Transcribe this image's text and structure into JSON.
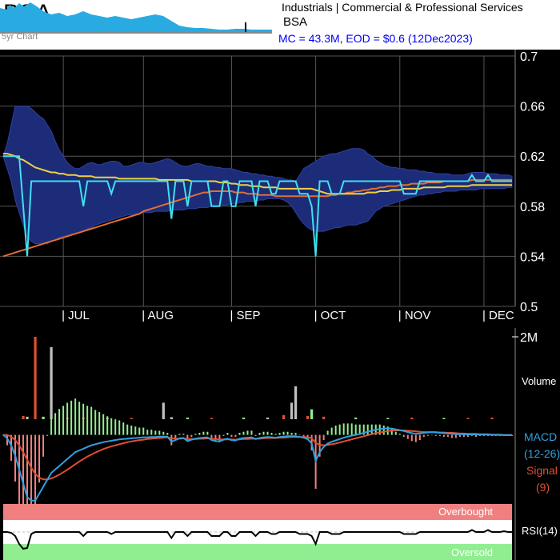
{
  "header": {
    "ticker": "BSA",
    "spark_label": "5yr Chart",
    "sector": "Industrials | Commercial & Professional Services",
    "ticker_small": "BSA",
    "mc_line": "MC = 43.3M, EOD = $0.6 (12Dec2023)"
  },
  "colors": {
    "price": "#40e0f0",
    "band": "#1c2c78",
    "ma_short": "#f0d040",
    "ma_long": "#e07030",
    "macd": "#30a0e0",
    "signal": "#e05030",
    "overbought": "#f08080",
    "oversold": "#90ee90",
    "volume_up": "#90ee90",
    "volume_down": "#e05030",
    "volume_neutral": "#c0c0c0"
  },
  "chart_data": [
    {
      "type": "line",
      "panel": "price",
      "ylim": [
        0.5,
        0.7
      ],
      "yticks": [
        0.5,
        0.54,
        0.58,
        0.62,
        0.66,
        0.7
      ],
      "ytick_labels": [
        "0.5",
        "0.54",
        "0.58",
        "0.62",
        "0.66",
        "0.7"
      ],
      "x_labels": [
        "| JUL",
        "| AUG",
        "| SEP",
        "| OCT",
        "| NOV",
        "| DEC"
      ],
      "x_label_days": [
        15,
        35,
        57,
        78,
        99,
        120
      ],
      "n_days": 128,
      "price": [
        0.62,
        0.62,
        0.62,
        0.62,
        0.62,
        0.58,
        0.54,
        0.6,
        0.6,
        0.6,
        0.6,
        0.6,
        0.6,
        0.6,
        0.6,
        0.6,
        0.6,
        0.6,
        0.6,
        0.6,
        0.58,
        0.6,
        0.6,
        0.6,
        0.6,
        0.6,
        0.6,
        0.59,
        0.6,
        0.6,
        0.6,
        0.6,
        0.6,
        0.6,
        0.6,
        0.6,
        0.6,
        0.6,
        0.6,
        0.6,
        0.6,
        0.6,
        0.57,
        0.6,
        0.6,
        0.6,
        0.58,
        0.6,
        0.6,
        0.6,
        0.6,
        0.6,
        0.58,
        0.58,
        0.58,
        0.6,
        0.6,
        0.58,
        0.58,
        0.6,
        0.6,
        0.6,
        0.6,
        0.58,
        0.6,
        0.6,
        0.6,
        0.59,
        0.59,
        0.6,
        0.6,
        0.6,
        0.6,
        0.6,
        0.59,
        0.59,
        0.59,
        0.58,
        0.54,
        0.6,
        0.6,
        0.6,
        0.59,
        0.59,
        0.59,
        0.6,
        0.6,
        0.6,
        0.6,
        0.6,
        0.6,
        0.6,
        0.6,
        0.6,
        0.6,
        0.6,
        0.6,
        0.6,
        0.6,
        0.6,
        0.59,
        0.59,
        0.59,
        0.59,
        0.6,
        0.6,
        0.6,
        0.6,
        0.6,
        0.6,
        0.6,
        0.6,
        0.6,
        0.6,
        0.6,
        0.6,
        0.6,
        0.605,
        0.6,
        0.6,
        0.6,
        0.605,
        0.6,
        0.6,
        0.6,
        0.6,
        0.6,
        0.6
      ],
      "band_upper": [
        0.62,
        0.63,
        0.645,
        0.66,
        0.66,
        0.66,
        0.66,
        0.658,
        0.655,
        0.652,
        0.65,
        0.645,
        0.64,
        0.632,
        0.625,
        0.62,
        0.615,
        0.612,
        0.61,
        0.61,
        0.612,
        0.614,
        0.615,
        0.614,
        0.613,
        0.614,
        0.615,
        0.616,
        0.616,
        0.615,
        0.612,
        0.612,
        0.613,
        0.614,
        0.615,
        0.615,
        0.614,
        0.614,
        0.615,
        0.616,
        0.617,
        0.618,
        0.617,
        0.615,
        0.613,
        0.612,
        0.612,
        0.613,
        0.614,
        0.614,
        0.613,
        0.612,
        0.612,
        0.611,
        0.611,
        0.61,
        0.61,
        0.61,
        0.609,
        0.608,
        0.607,
        0.607,
        0.606,
        0.606,
        0.605,
        0.605,
        0.604,
        0.604,
        0.603,
        0.603,
        0.602,
        0.601,
        0.601,
        0.6,
        0.605,
        0.61,
        0.612,
        0.614,
        0.616,
        0.618,
        0.62,
        0.621,
        0.622,
        0.622,
        0.623,
        0.624,
        0.625,
        0.626,
        0.626,
        0.626,
        0.625,
        0.622,
        0.62,
        0.617,
        0.615,
        0.613,
        0.612,
        0.611,
        0.611,
        0.61,
        0.61,
        0.609,
        0.609,
        0.609,
        0.608,
        0.608,
        0.607,
        0.607,
        0.606,
        0.606,
        0.606,
        0.606,
        0.605,
        0.605,
        0.605,
        0.605,
        0.606,
        0.607,
        0.607,
        0.607,
        0.607,
        0.606,
        0.606,
        0.606,
        0.605,
        0.605,
        0.605,
        0.604
      ],
      "band_lower": [
        0.62,
        0.61,
        0.6,
        0.585,
        0.575,
        0.565,
        0.555,
        0.552,
        0.55,
        0.55,
        0.55,
        0.55,
        0.552,
        0.553,
        0.555,
        0.556,
        0.557,
        0.558,
        0.558,
        0.559,
        0.56,
        0.562,
        0.563,
        0.565,
        0.566,
        0.567,
        0.568,
        0.569,
        0.57,
        0.571,
        0.572,
        0.573,
        0.573,
        0.574,
        0.574,
        0.575,
        0.575,
        0.575,
        0.576,
        0.576,
        0.576,
        0.576,
        0.577,
        0.577,
        0.577,
        0.577,
        0.578,
        0.578,
        0.578,
        0.579,
        0.579,
        0.579,
        0.58,
        0.58,
        0.58,
        0.581,
        0.581,
        0.582,
        0.582,
        0.583,
        0.583,
        0.584,
        0.584,
        0.584,
        0.585,
        0.585,
        0.586,
        0.586,
        0.586,
        0.586,
        0.585,
        0.583,
        0.58,
        0.575,
        0.57,
        0.566,
        0.563,
        0.561,
        0.56,
        0.56,
        0.56,
        0.561,
        0.562,
        0.563,
        0.563,
        0.564,
        0.565,
        0.565,
        0.565,
        0.566,
        0.567,
        0.568,
        0.572,
        0.576,
        0.578,
        0.58,
        0.581,
        0.582,
        0.583,
        0.584,
        0.585,
        0.586,
        0.587,
        0.588,
        0.589,
        0.589,
        0.59,
        0.59,
        0.591,
        0.591,
        0.592,
        0.592,
        0.592,
        0.592,
        0.593,
        0.593,
        0.593,
        0.593,
        0.593,
        0.594,
        0.594,
        0.594,
        0.594,
        0.594,
        0.594,
        0.594,
        0.595,
        0.595
      ],
      "ma_short": [
        0.622,
        0.622,
        0.621,
        0.62,
        0.618,
        0.617,
        0.615,
        0.613,
        0.611,
        0.61,
        0.609,
        0.608,
        0.607,
        0.607,
        0.606,
        0.606,
        0.605,
        0.605,
        0.605,
        0.604,
        0.604,
        0.604,
        0.604,
        0.603,
        0.603,
        0.603,
        0.603,
        0.603,
        0.603,
        0.602,
        0.602,
        0.602,
        0.602,
        0.602,
        0.602,
        0.602,
        0.602,
        0.602,
        0.602,
        0.601,
        0.601,
        0.601,
        0.601,
        0.601,
        0.601,
        0.601,
        0.601,
        0.6,
        0.6,
        0.6,
        0.6,
        0.6,
        0.6,
        0.6,
        0.599,
        0.599,
        0.599,
        0.598,
        0.598,
        0.597,
        0.597,
        0.597,
        0.596,
        0.596,
        0.596,
        0.595,
        0.595,
        0.595,
        0.595,
        0.594,
        0.594,
        0.594,
        0.594,
        0.594,
        0.594,
        0.594,
        0.594,
        0.594,
        0.593,
        0.592,
        0.591,
        0.59,
        0.59,
        0.59,
        0.59,
        0.59,
        0.59,
        0.59,
        0.59,
        0.59,
        0.59,
        0.591,
        0.591,
        0.591,
        0.592,
        0.592,
        0.592,
        0.593,
        0.593,
        0.593,
        0.594,
        0.594,
        0.594,
        0.594,
        0.594,
        0.595,
        0.595,
        0.595,
        0.595,
        0.595,
        0.595,
        0.596,
        0.596,
        0.596,
        0.596,
        0.596,
        0.596,
        0.597,
        0.597,
        0.597,
        0.597,
        0.597,
        0.597,
        0.597,
        0.597,
        0.597,
        0.597,
        0.597
      ],
      "ma_long": [
        0.54,
        0.541,
        0.542,
        0.543,
        0.544,
        0.545,
        0.546,
        0.547,
        0.548,
        0.549,
        0.55,
        0.551,
        0.552,
        0.553,
        0.554,
        0.555,
        0.556,
        0.557,
        0.558,
        0.559,
        0.56,
        0.561,
        0.562,
        0.563,
        0.564,
        0.565,
        0.566,
        0.567,
        0.568,
        0.569,
        0.57,
        0.571,
        0.572,
        0.573,
        0.574,
        0.576,
        0.577,
        0.578,
        0.579,
        0.58,
        0.581,
        0.582,
        0.583,
        0.584,
        0.585,
        0.586,
        0.587,
        0.588,
        0.589,
        0.59,
        0.591,
        0.591,
        0.592,
        0.592,
        0.592,
        0.592,
        0.592,
        0.592,
        0.591,
        0.591,
        0.591,
        0.59,
        0.59,
        0.59,
        0.589,
        0.589,
        0.589,
        0.589,
        0.588,
        0.588,
        0.588,
        0.588,
        0.588,
        0.588,
        0.588,
        0.588,
        0.588,
        0.588,
        0.588,
        0.588,
        0.588,
        0.588,
        0.589,
        0.589,
        0.59,
        0.59,
        0.591,
        0.591,
        0.592,
        0.592,
        0.593,
        0.593,
        0.594,
        0.594,
        0.595,
        0.595,
        0.596,
        0.596,
        0.596,
        0.597,
        0.597,
        0.597,
        0.598,
        0.598,
        0.598,
        0.598,
        0.599,
        0.599,
        0.599,
        0.599,
        0.6,
        0.6,
        0.6,
        0.6,
        0.6,
        0.6,
        0.6,
        0.601,
        0.601,
        0.601,
        0.601,
        0.601,
        0.601,
        0.601,
        0.601,
        0.601,
        0.601,
        0.601
      ]
    },
    {
      "type": "bar",
      "panel": "volume",
      "ylim": [
        0,
        2000000
      ],
      "ytick_label": "2M",
      "label": "Volume",
      "bars": [
        {
          "day": 5,
          "value": 80000,
          "dir": "down"
        },
        {
          "day": 6,
          "value": 60000,
          "dir": "neutral"
        },
        {
          "day": 8,
          "value": 2000000,
          "dir": "down"
        },
        {
          "day": 10,
          "value": 60000,
          "dir": "up"
        },
        {
          "day": 12,
          "value": 1750000,
          "dir": "neutral"
        },
        {
          "day": 16,
          "value": 30000,
          "dir": "down"
        },
        {
          "day": 20,
          "value": 40000,
          "dir": "down"
        },
        {
          "day": 26,
          "value": 30000,
          "dir": "neutral"
        },
        {
          "day": 32,
          "value": 30000,
          "dir": "down"
        },
        {
          "day": 40,
          "value": 400000,
          "dir": "neutral"
        },
        {
          "day": 42,
          "value": 50000,
          "dir": "neutral"
        },
        {
          "day": 46,
          "value": 40000,
          "dir": "up"
        },
        {
          "day": 52,
          "value": 30000,
          "dir": "down"
        },
        {
          "day": 60,
          "value": 40000,
          "dir": "up"
        },
        {
          "day": 66,
          "value": 40000,
          "dir": "neutral"
        },
        {
          "day": 70,
          "value": 100000,
          "dir": "down"
        },
        {
          "day": 72,
          "value": 400000,
          "dir": "neutral"
        },
        {
          "day": 73,
          "value": 800000,
          "dir": "neutral"
        },
        {
          "day": 76,
          "value": 80000,
          "dir": "down"
        },
        {
          "day": 77,
          "value": 240000,
          "dir": "up"
        },
        {
          "day": 80,
          "value": 60000,
          "dir": "down"
        },
        {
          "day": 88,
          "value": 40000,
          "dir": "up"
        },
        {
          "day": 96,
          "value": 30000,
          "dir": "up"
        },
        {
          "day": 102,
          "value": 40000,
          "dir": "down"
        },
        {
          "day": 110,
          "value": 30000,
          "dir": "up"
        },
        {
          "day": 116,
          "value": 30000,
          "dir": "down"
        },
        {
          "day": 122,
          "value": 40000,
          "dir": "down"
        }
      ]
    },
    {
      "type": "line",
      "panel": "macd",
      "label_macd": "MACD",
      "label_macd_params": "(12-26)",
      "label_signal": "Signal",
      "label_signal_params": "(9)",
      "ylim": [
        -0.02,
        0.005
      ],
      "macd": [
        0.0,
        -0.001,
        -0.003,
        -0.006,
        -0.01,
        -0.014,
        -0.018,
        -0.019,
        -0.019,
        -0.017,
        -0.015,
        -0.013,
        -0.011,
        -0.01,
        -0.009,
        -0.008,
        -0.007,
        -0.006,
        -0.005,
        -0.0045,
        -0.004,
        -0.0035,
        -0.003,
        -0.0027,
        -0.0024,
        -0.0021,
        -0.0019,
        -0.0017,
        -0.0015,
        -0.0013,
        -0.0012,
        -0.0011,
        -0.001,
        -0.0009,
        -0.0008,
        -0.0007,
        -0.0007,
        -0.0006,
        -0.0006,
        -0.0005,
        -0.0005,
        -0.0005,
        -0.002,
        -0.0015,
        -0.001,
        -0.0009,
        -0.0018,
        -0.0014,
        -0.0011,
        -0.0009,
        -0.0008,
        -0.0007,
        -0.0015,
        -0.0018,
        -0.0019,
        -0.0014,
        -0.0011,
        -0.0015,
        -0.0016,
        -0.0011,
        -0.0009,
        -0.0008,
        -0.0007,
        -0.0012,
        -0.0009,
        -0.0007,
        -0.0006,
        -0.0007,
        -0.0008,
        -0.0006,
        -0.0005,
        -0.0004,
        -0.0004,
        -0.0004,
        -0.0006,
        -0.0008,
        -0.0012,
        -0.0025,
        -0.0075,
        -0.005,
        -0.0035,
        -0.0025,
        -0.002,
        -0.0016,
        -0.0012,
        -0.0008,
        -0.0005,
        -0.0002,
        0.0,
        0.0003,
        0.0006,
        0.0009,
        0.0012,
        0.0015,
        0.0017,
        0.0018,
        0.0019,
        0.0018,
        0.0016,
        0.0014,
        0.0011,
        0.0008,
        0.0005,
        0.0003,
        0.0004,
        0.0006,
        0.0007,
        0.0008,
        0.0007,
        0.0006,
        0.0005,
        0.0004,
        0.0003,
        0.0002,
        0.0002,
        0.0002,
        0.0001,
        0.0002,
        0.0001,
        0.0001,
        0.0001,
        0.0001,
        0.0,
        0.0,
        0.0,
        -0.0001,
        -0.0001,
        -0.0001
      ],
      "signal": [
        0.0,
        0.0,
        -0.0005,
        -0.0015,
        -0.003,
        -0.005,
        -0.0072,
        -0.0095,
        -0.0113,
        -0.0124,
        -0.0129,
        -0.0129,
        -0.0126,
        -0.0121,
        -0.0115,
        -0.0108,
        -0.0101,
        -0.0093,
        -0.0085,
        -0.0077,
        -0.007,
        -0.0063,
        -0.0057,
        -0.0051,
        -0.0046,
        -0.0041,
        -0.0037,
        -0.0033,
        -0.003,
        -0.0027,
        -0.0024,
        -0.0021,
        -0.0019,
        -0.0017,
        -0.0015,
        -0.0014,
        -0.0012,
        -0.0011,
        -0.001,
        -0.0009,
        -0.0008,
        -0.0007,
        -0.001,
        -0.0011,
        -0.0011,
        -0.001,
        -0.0012,
        -0.0012,
        -0.0012,
        -0.0011,
        -0.0011,
        -0.001,
        -0.0011,
        -0.0012,
        -0.0013,
        -0.0013,
        -0.0013,
        -0.0013,
        -0.0014,
        -0.0013,
        -0.0012,
        -0.0012,
        -0.0011,
        -0.0011,
        -0.0011,
        -0.001,
        -0.0009,
        -0.0009,
        -0.0009,
        -0.0008,
        -0.0008,
        -0.0007,
        -0.0006,
        -0.0006,
        -0.0006,
        -0.0006,
        -0.0007,
        -0.001,
        -0.0023,
        -0.0029,
        -0.003,
        -0.0029,
        -0.0027,
        -0.0025,
        -0.0022,
        -0.0019,
        -0.0016,
        -0.0013,
        -0.001,
        -0.0007,
        -0.0004,
        -0.0001,
        0.0002,
        0.0005,
        0.0007,
        0.0009,
        0.0011,
        0.0012,
        0.0013,
        0.0013,
        0.0013,
        0.0012,
        0.0011,
        0.001,
        0.0009,
        0.0008,
        0.0008,
        0.0008,
        0.0008,
        0.0007,
        0.0007,
        0.0006,
        0.0006,
        0.0005,
        0.0004,
        0.0004,
        0.0003,
        0.0003,
        0.0003,
        0.0002,
        0.0002,
        0.0002,
        0.0001,
        0.0001,
        0.0001,
        0.0,
        0.0,
        0.0
      ]
    },
    {
      "type": "line",
      "panel": "rsi",
      "label": "RSI(14)",
      "overbought_label": "Overbought",
      "oversold_label": "Oversold",
      "ylim": [
        0,
        100
      ],
      "rsi": [
        50,
        50,
        48,
        40,
        20,
        8,
        10,
        45,
        50,
        50,
        50,
        50,
        50,
        50,
        50,
        50,
        50,
        50,
        50,
        50,
        40,
        50,
        50,
        50,
        50,
        50,
        50,
        45,
        50,
        50,
        50,
        50,
        50,
        50,
        50,
        50,
        50,
        50,
        50,
        50,
        50,
        50,
        35,
        50,
        50,
        50,
        40,
        50,
        50,
        50,
        50,
        50,
        40,
        40,
        40,
        50,
        50,
        40,
        40,
        50,
        50,
        50,
        50,
        40,
        50,
        50,
        50,
        45,
        45,
        50,
        50,
        50,
        50,
        50,
        45,
        45,
        45,
        40,
        20,
        50,
        50,
        50,
        45,
        45,
        45,
        50,
        50,
        50,
        50,
        50,
        50,
        50,
        50,
        50,
        50,
        50,
        50,
        50,
        50,
        50,
        45,
        45,
        45,
        45,
        50,
        50,
        50,
        50,
        50,
        50,
        50,
        50,
        50,
        50,
        50,
        50,
        50,
        55,
        50,
        50,
        50,
        55,
        50,
        50,
        50,
        52,
        50,
        50
      ]
    }
  ]
}
